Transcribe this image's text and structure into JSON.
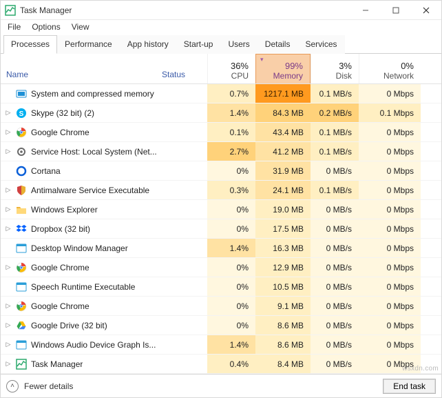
{
  "window": {
    "title": "Task Manager"
  },
  "menubar": [
    "File",
    "Options",
    "View"
  ],
  "tabs": [
    "Processes",
    "Performance",
    "App history",
    "Start-up",
    "Users",
    "Details",
    "Services"
  ],
  "active_tab": 0,
  "columns": {
    "name": "Name",
    "status": "Status",
    "cpu": {
      "pct": "36%",
      "label": "CPU"
    },
    "memory": {
      "pct": "99%",
      "label": "Memory",
      "sorted": true
    },
    "disk": {
      "pct": "3%",
      "label": "Disk"
    },
    "network": {
      "pct": "0%",
      "label": "Network"
    }
  },
  "heat_colors": {
    "h0": "#fff7df",
    "h1": "#ffefc2",
    "h2": "#ffe2a3",
    "h3": "#ffd27a",
    "h4": "#ffc35a",
    "h5": "#ffb23a",
    "h6": "#ff9a1f"
  },
  "footer": {
    "fewer": "Fewer details",
    "end_task": "End task"
  },
  "processes": [
    {
      "expand": false,
      "icon": "mem-icon",
      "icon_bg": "#1e90d6",
      "name": "System and compressed memory",
      "cpu": "0.7%",
      "cpu_h": "h1",
      "mem": "1217.1 MB",
      "mem_h": "h6",
      "disk": "0.1 MB/s",
      "disk_h": "h1",
      "net": "0 Mbps",
      "net_h": "h0"
    },
    {
      "expand": true,
      "icon": "skype-icon",
      "icon_bg": "#00aff0",
      "name": "Skype (32 bit) (2)",
      "cpu": "1.4%",
      "cpu_h": "h2",
      "mem": "84.3 MB",
      "mem_h": "h3",
      "disk": "0.2 MB/s",
      "disk_h": "h3",
      "net": "0.1 Mbps",
      "net_h": "h1"
    },
    {
      "expand": true,
      "icon": "chrome-icon",
      "icon_bg": "#ffffff",
      "name": "Google Chrome",
      "cpu": "0.1%",
      "cpu_h": "h1",
      "mem": "43.4 MB",
      "mem_h": "h2",
      "disk": "0.1 MB/s",
      "disk_h": "h1",
      "net": "0 Mbps",
      "net_h": "h0"
    },
    {
      "expand": true,
      "icon": "gear-icon",
      "icon_bg": "#6a6a6a",
      "name": "Service Host: Local System (Net...",
      "cpu": "2.7%",
      "cpu_h": "h3",
      "mem": "41.2 MB",
      "mem_h": "h2",
      "disk": "0.1 MB/s",
      "disk_h": "h1",
      "net": "0 Mbps",
      "net_h": "h0"
    },
    {
      "expand": false,
      "icon": "cortana-icon",
      "icon_bg": "#0a5fd8",
      "name": "Cortana",
      "cpu": "0%",
      "cpu_h": "h0",
      "mem": "31.9 MB",
      "mem_h": "h2",
      "disk": "0 MB/s",
      "disk_h": "h0",
      "net": "0 Mbps",
      "net_h": "h0"
    },
    {
      "expand": true,
      "icon": "shield-icon",
      "icon_bg": "#d04040",
      "name": "Antimalware Service Executable",
      "cpu": "0.3%",
      "cpu_h": "h1",
      "mem": "24.1 MB",
      "mem_h": "h2",
      "disk": "0.1 MB/s",
      "disk_h": "h1",
      "net": "0 Mbps",
      "net_h": "h0"
    },
    {
      "expand": true,
      "icon": "folder-icon",
      "icon_bg": "#f0b43c",
      "name": "Windows Explorer",
      "cpu": "0%",
      "cpu_h": "h0",
      "mem": "19.0 MB",
      "mem_h": "h1",
      "disk": "0 MB/s",
      "disk_h": "h0",
      "net": "0 Mbps",
      "net_h": "h0"
    },
    {
      "expand": true,
      "icon": "dropbox-icon",
      "icon_bg": "#0061ff",
      "name": "Dropbox (32 bit)",
      "cpu": "0%",
      "cpu_h": "h0",
      "mem": "17.5 MB",
      "mem_h": "h1",
      "disk": "0 MB/s",
      "disk_h": "h0",
      "net": "0 Mbps",
      "net_h": "h0"
    },
    {
      "expand": false,
      "icon": "dwm-icon",
      "icon_bg": "#2a9ed8",
      "name": "Desktop Window Manager",
      "cpu": "1.4%",
      "cpu_h": "h2",
      "mem": "16.3 MB",
      "mem_h": "h1",
      "disk": "0 MB/s",
      "disk_h": "h0",
      "net": "0 Mbps",
      "net_h": "h0"
    },
    {
      "expand": true,
      "icon": "chrome-icon",
      "icon_bg": "#ffffff",
      "name": "Google Chrome",
      "cpu": "0%",
      "cpu_h": "h0",
      "mem": "12.9 MB",
      "mem_h": "h1",
      "disk": "0 MB/s",
      "disk_h": "h0",
      "net": "0 Mbps",
      "net_h": "h0"
    },
    {
      "expand": false,
      "icon": "speech-icon",
      "icon_bg": "#2a9ed8",
      "name": "Speech Runtime Executable",
      "cpu": "0%",
      "cpu_h": "h0",
      "mem": "10.5 MB",
      "mem_h": "h1",
      "disk": "0 MB/s",
      "disk_h": "h0",
      "net": "0 Mbps",
      "net_h": "h0"
    },
    {
      "expand": true,
      "icon": "chrome-icon",
      "icon_bg": "#ffffff",
      "name": "Google Chrome",
      "cpu": "0%",
      "cpu_h": "h0",
      "mem": "9.1 MB",
      "mem_h": "h1",
      "disk": "0 MB/s",
      "disk_h": "h0",
      "net": "0 Mbps",
      "net_h": "h0"
    },
    {
      "expand": true,
      "icon": "drive-icon",
      "icon_bg": "#ffffff",
      "name": "Google Drive (32 bit)",
      "cpu": "0%",
      "cpu_h": "h0",
      "mem": "8.6 MB",
      "mem_h": "h1",
      "disk": "0 MB/s",
      "disk_h": "h0",
      "net": "0 Mbps",
      "net_h": "h0"
    },
    {
      "expand": true,
      "icon": "audio-icon",
      "icon_bg": "#2a9ed8",
      "name": "Windows Audio Device Graph Is...",
      "cpu": "1.4%",
      "cpu_h": "h2",
      "mem": "8.6 MB",
      "mem_h": "h1",
      "disk": "0 MB/s",
      "disk_h": "h0",
      "net": "0 Mbps",
      "net_h": "h0"
    },
    {
      "expand": true,
      "icon": "taskmgr-icon",
      "icon_bg": "#2aa86c",
      "name": "Task Manager",
      "cpu": "0.4%",
      "cpu_h": "h1",
      "mem": "8.4 MB",
      "mem_h": "h1",
      "disk": "0 MB/s",
      "disk_h": "h0",
      "net": "0 Mbps",
      "net_h": "h0"
    }
  ]
}
